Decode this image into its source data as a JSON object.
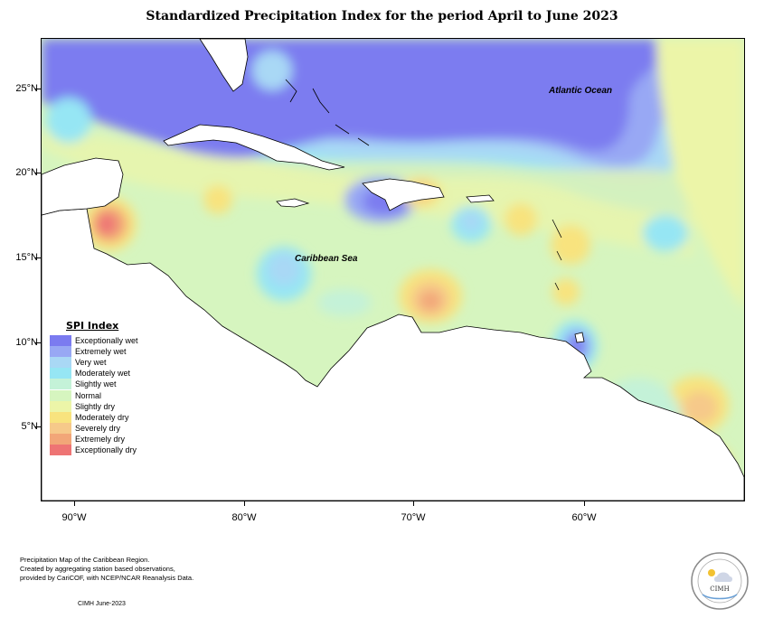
{
  "title": "Standardized Precipitation Index for the period April to June 2023",
  "map": {
    "region": "Caribbean",
    "variable": "SPI",
    "period": "April to June 2023",
    "extent": {
      "lon_min": -92,
      "lon_max": -52,
      "lat_min": 0.5,
      "lat_max": 28.5
    },
    "lat_ticks": [
      {
        "value": 25,
        "label": "25°N"
      },
      {
        "value": 20,
        "label": "20°N"
      },
      {
        "value": 15,
        "label": "15°N"
      },
      {
        "value": 10,
        "label": "10°N"
      },
      {
        "value": 5,
        "label": "5°N"
      }
    ],
    "lon_ticks": [
      {
        "value": -90,
        "label": "90°W"
      },
      {
        "value": -80,
        "label": "80°W"
      },
      {
        "value": -70,
        "label": "70°W"
      },
      {
        "value": -60,
        "label": "60°W"
      }
    ],
    "ocean_labels": {
      "atlantic": "Atlantic Ocean",
      "caribbean": "Caribbean Sea"
    }
  },
  "legend": {
    "title": "SPI Index",
    "items": [
      {
        "label": "Exceptionally wet",
        "color": "#7b7bf0"
      },
      {
        "label": "Extremely wet",
        "color": "#98a8f4"
      },
      {
        "label": "Very wet",
        "color": "#a9d8f5"
      },
      {
        "label": "Moderately wet",
        "color": "#96e6f4"
      },
      {
        "label": "Slightly wet",
        "color": "#c4f2d8"
      },
      {
        "label": "Normal",
        "color": "#d6f5bf"
      },
      {
        "label": "Slightly dry",
        "color": "#ecf5a8"
      },
      {
        "label": "Moderately dry",
        "color": "#f8e37e"
      },
      {
        "label": "Severely dry",
        "color": "#f6c98a"
      },
      {
        "label": "Extremely dry",
        "color": "#f2a678"
      },
      {
        "label": "Exceptionally dry",
        "color": "#ee7474"
      }
    ]
  },
  "credits": {
    "lines": [
      "Precipitation Map of the Caribbean Region.",
      "Created by aggregating station based observations,",
      "provided by CariCOF, with NCEP/NCAR Reanalysis Data."
    ],
    "date": "CIMH June-2023"
  },
  "logo": {
    "text": "CIMH"
  }
}
